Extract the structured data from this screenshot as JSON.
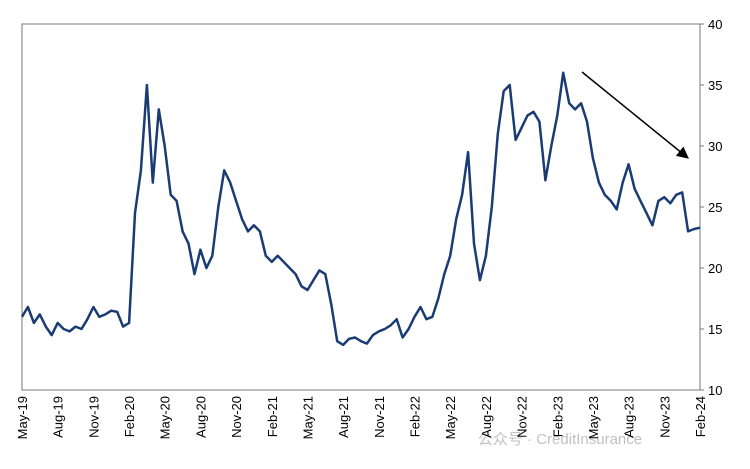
{
  "chart_data": {
    "type": "line",
    "categories": [
      "May-19",
      null,
      null,
      null,
      null,
      null,
      "Aug-19",
      null,
      null,
      null,
      null,
      null,
      "Nov-19",
      null,
      null,
      null,
      null,
      null,
      "Feb-20",
      null,
      null,
      null,
      null,
      null,
      "May-20",
      null,
      null,
      null,
      null,
      null,
      "Aug-20",
      null,
      null,
      null,
      null,
      null,
      "Nov-20",
      null,
      null,
      null,
      null,
      null,
      "Feb-21",
      null,
      null,
      null,
      null,
      null,
      "May-21",
      null,
      null,
      null,
      null,
      null,
      "Aug-21",
      null,
      null,
      null,
      null,
      null,
      "Nov-21",
      null,
      null,
      null,
      null,
      null,
      "Feb-22",
      null,
      null,
      null,
      null,
      null,
      "May-22",
      null,
      null,
      null,
      null,
      null,
      "Aug-22",
      null,
      null,
      null,
      null,
      null,
      "Nov-22",
      null,
      null,
      null,
      null,
      null,
      "Feb-23",
      null,
      null,
      null,
      null,
      null,
      "May-23",
      null,
      null,
      null,
      null,
      null,
      "Aug-23",
      null,
      null,
      null,
      null,
      null,
      "Nov-23",
      null,
      null,
      null,
      null,
      null,
      "Feb-24"
    ],
    "series": [
      {
        "color": "#1b3c73",
        "values": [
          16,
          16.8,
          15.5,
          16.2,
          15.2,
          14.5,
          15.5,
          15,
          14.8,
          15.2,
          15,
          15.8,
          16.8,
          16,
          16.2,
          16.5,
          16.4,
          15.2,
          15.5,
          24.5,
          28,
          35,
          27,
          33,
          30,
          26,
          25.5,
          23,
          22,
          19.5,
          21.5,
          20,
          21,
          25,
          28,
          27,
          25.5,
          24,
          23,
          23.5,
          23,
          21,
          20.5,
          21,
          20.5,
          20,
          19.5,
          18.5,
          18.2,
          19,
          19.8,
          19.5,
          17,
          14,
          13.7,
          14.2,
          14.3,
          14,
          13.8,
          14.5,
          14.8,
          15,
          15.3,
          15.8,
          14.3,
          15,
          16,
          16.8,
          15.8,
          16,
          17.5,
          19.5,
          21,
          24,
          26,
          29.5,
          22,
          19,
          21,
          25,
          31,
          34.5,
          35,
          30.5,
          31.5,
          32.5,
          32.8,
          32,
          27.2,
          30,
          32.5,
          36,
          33.5,
          33,
          33.5,
          32,
          29,
          27,
          26,
          25.5,
          24.8,
          27,
          28.5,
          26.5,
          25.5,
          24.5,
          23.5,
          25.5,
          25.8,
          25.3,
          26,
          26.2,
          23,
          23.2,
          23.3
        ]
      }
    ],
    "ylim": [
      10,
      40
    ],
    "yticks": [
      10,
      15,
      20,
      25,
      30,
      35,
      40
    ],
    "watermark": "公众号 · CreditInsurance"
  }
}
